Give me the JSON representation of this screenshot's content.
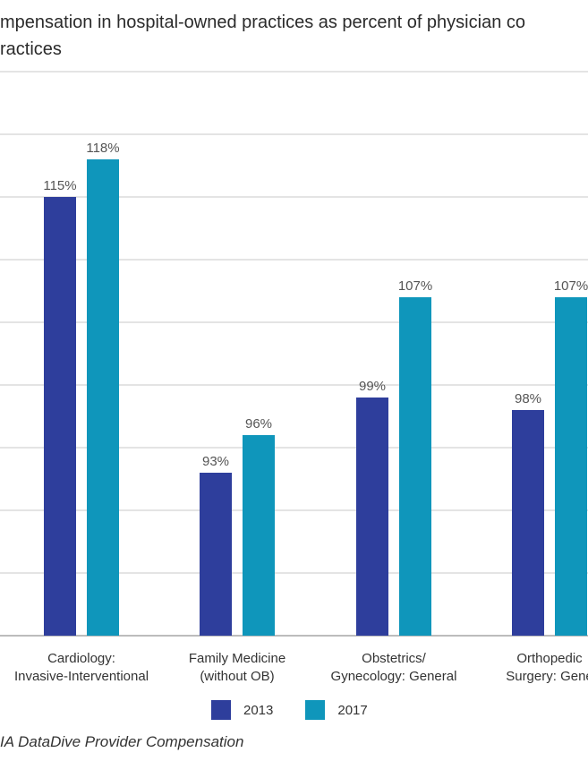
{
  "title_lines": [
    "mpensation in hospital-owned practices as percent of physician co",
    "ractices"
  ],
  "source": "IA DataDive Provider Compensation",
  "colors": {
    "series_2013": "#2e3e9c",
    "series_2017": "#0f96bb",
    "gridline": "#c9c9c9",
    "axis": "#a6a6a6"
  },
  "chart_data": {
    "type": "bar",
    "categories": [
      [
        "Cardiology:",
        "Invasive-Interventional"
      ],
      [
        "Family Medicine",
        "(without OB)"
      ],
      [
        "Obstetrics/",
        "Gynecology: General"
      ],
      [
        "Orthopedic",
        "Surgery: Gene"
      ]
    ],
    "series": [
      {
        "name": "2013",
        "values": [
          115,
          93,
          99,
          98
        ],
        "labels": [
          "115%",
          "93%",
          "99%",
          "98%"
        ]
      },
      {
        "name": "2017",
        "values": [
          118,
          96,
          107,
          107
        ],
        "labels": [
          "118%",
          "96%",
          "107%",
          "107%"
        ]
      }
    ],
    "ylim": [
      80,
      125
    ],
    "grid": true,
    "legend": "bottom"
  }
}
